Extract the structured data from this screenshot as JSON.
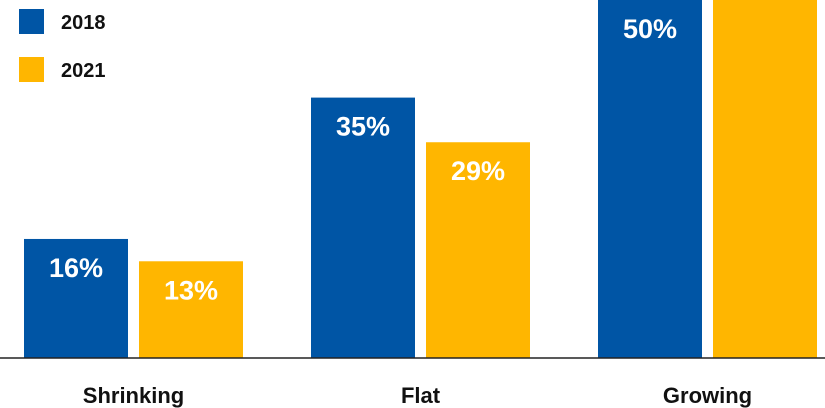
{
  "chart_data": {
    "type": "bar",
    "categories": [
      "Shrinking",
      "Flat",
      "Growing"
    ],
    "series": [
      {
        "name": "2018",
        "color": "#0055A5",
        "values": [
          16,
          35,
          50
        ],
        "labels": [
          "16%",
          "35%",
          "50%"
        ]
      },
      {
        "name": "2021",
        "color": "#FFB600",
        "values": [
          13,
          29,
          null
        ],
        "labels": [
          "13%",
          "29%",
          ""
        ]
      }
    ],
    "legend_position": "top-left",
    "ylim": [
      0,
      50
    ]
  }
}
